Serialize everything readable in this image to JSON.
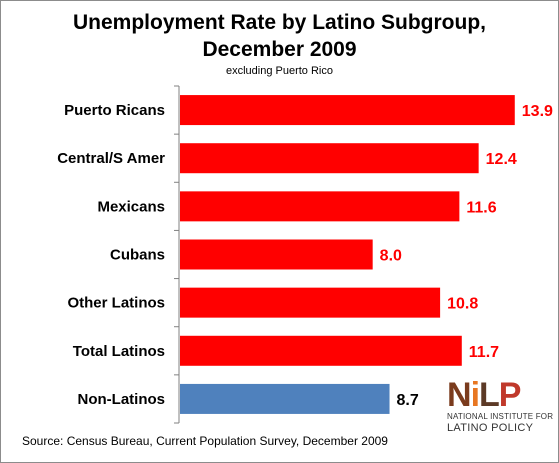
{
  "chart_data": {
    "type": "bar",
    "orientation": "horizontal",
    "title_line1": "Unemployment Rate by Latino Subgroup,",
    "title_line2": "December 2009",
    "subtitle": "excluding Puerto Rico",
    "categories": [
      "Puerto Ricans",
      "Central/S Amer",
      "Mexicans",
      "Cubans",
      "Other Latinos",
      "Total Latinos",
      "Non-Latinos"
    ],
    "values": [
      13.9,
      12.4,
      11.6,
      8.0,
      10.8,
      11.7,
      8.7
    ],
    "value_labels": [
      "13.9",
      "12.4",
      "11.6",
      "8.0",
      "10.8",
      "11.7",
      "8.7"
    ],
    "bar_colors": [
      "#ff0000",
      "#ff0000",
      "#ff0000",
      "#ff0000",
      "#ff0000",
      "#ff0000",
      "#4f81bd"
    ],
    "label_colors": [
      "#ff0000",
      "#ff0000",
      "#ff0000",
      "#ff0000",
      "#ff0000",
      "#ff0000",
      "#000000"
    ],
    "xlim": [
      0,
      14.2
    ],
    "grid": false,
    "legend": "none",
    "source": "Source: Census Bureau, Current Population Survey, December 2009"
  },
  "logo": {
    "mark_n": "N",
    "mark_i": "i",
    "mark_l": "L",
    "mark_p": "P",
    "line1": "NATIONAL INSTITUTE FOR",
    "line2": "LATINO POLICY"
  }
}
